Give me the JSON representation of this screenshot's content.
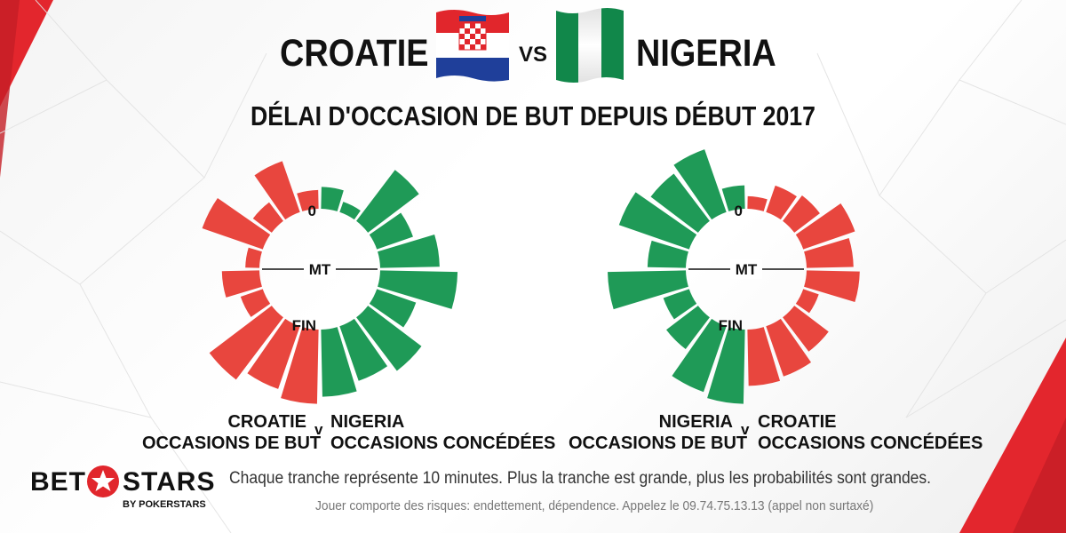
{
  "header": {
    "team_a": "CROATIE",
    "vs": "VS",
    "team_b": "NIGERIA",
    "subtitle": "DÉLAI D'OCCASION DE BUT DEPUIS DÉBUT 2017"
  },
  "colors": {
    "red": "#e8463e",
    "green": "#1f9a57",
    "flag_green": "#11874a",
    "croatia_red": "#e1262c",
    "croatia_blue": "#1f3f9a"
  },
  "chart_data": [
    {
      "type": "radial-bar",
      "center_labels": {
        "start": "0",
        "half": "MT",
        "end": "FIN"
      },
      "slice_minutes": 10,
      "left_series": {
        "team": "CROATIE",
        "metric": "OCCASIONS DE BUT",
        "color": "red",
        "values": [
          0.24,
          0.69,
          0.3,
          0.82,
          0.18,
          0.48,
          0.3,
          1.0,
          0.85,
          0.95
        ]
      },
      "right_series": {
        "team": "NIGERIA",
        "metric": "OCCASIONS CONCÉDÉES",
        "color": "green",
        "values": [
          0.28,
          0.14,
          0.82,
          0.49,
          0.76,
          0.99,
          0.53,
          0.86,
          0.74,
          0.86
        ]
      },
      "v_label": "v"
    },
    {
      "type": "radial-bar",
      "center_labels": {
        "start": "0",
        "half": "MT",
        "end": "FIN"
      },
      "slice_minutes": 10,
      "left_series": {
        "team": "NIGERIA",
        "metric": "OCCASIONS DE BUT",
        "color": "green",
        "values": [
          0.3,
          0.85,
          0.76,
          0.95,
          0.49,
          1.0,
          0.35,
          0.51,
          0.89,
          0.95
        ]
      },
      "right_series": {
        "team": "CROATIE",
        "metric": "OCCASIONS CONCÉDÉES",
        "color": "red",
        "values": [
          0.16,
          0.36,
          0.41,
          0.7,
          0.6,
          0.68,
          0.21,
          0.55,
          0.68,
          0.72
        ]
      },
      "v_label": "v"
    }
  ],
  "footer": {
    "note": "Chaque tranche représente 10 minutes. Plus la tranche est grande, plus les probabilités sont grandes.",
    "disclaimer": "Jouer comporte des risques: endettement, dépendence. Appelez le 09.74.75.13.13 (appel non surtaxé)",
    "logo_bet": "BET",
    "logo_stars": "STARS",
    "logo_sub": "BY POKERSTARS"
  }
}
